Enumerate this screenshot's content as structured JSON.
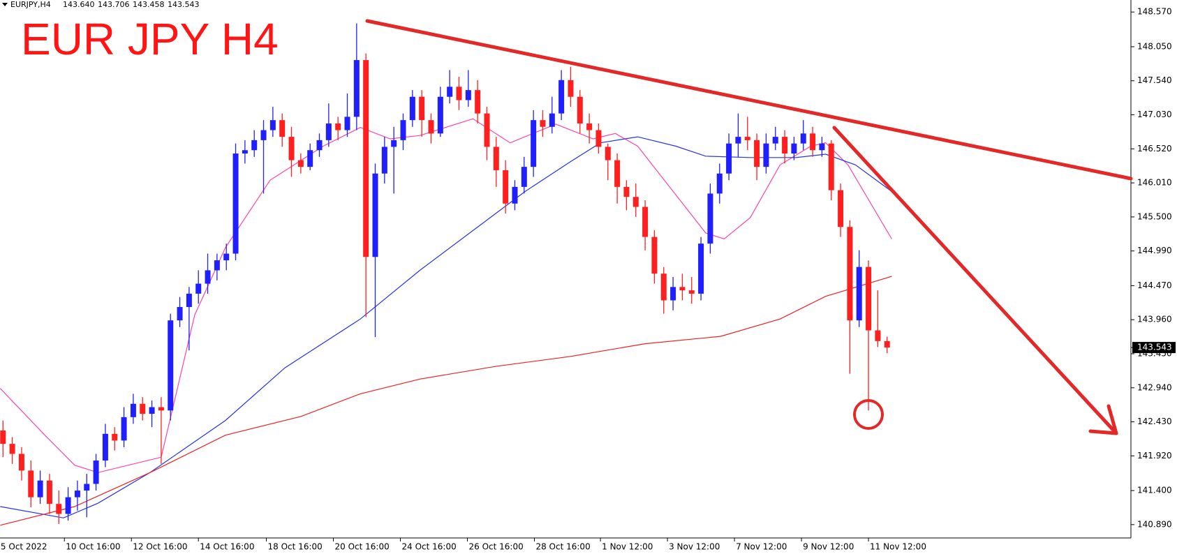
{
  "chart_data": {
    "type": "candlestick",
    "title": "EUR JPY H4",
    "info_label": "EURJPY,H4",
    "info_values": [
      {
        "value": 143.64,
        "label": "143.640"
      },
      {
        "value": 143.706,
        "label": "143.706"
      },
      {
        "value": 143.458,
        "label": "143.458"
      },
      {
        "value": 143.543,
        "label": "143.543"
      }
    ],
    "up_color": "#1f1fff",
    "down_color": "#ff1f1f",
    "ylim": [
      140.69,
      148.75
    ],
    "yticks": [
      {
        "value": 148.57,
        "label": "148.570"
      },
      {
        "value": 148.05,
        "label": "148.050"
      },
      {
        "value": 147.54,
        "label": "147.540"
      },
      {
        "value": 147.03,
        "label": "147.030"
      },
      {
        "value": 146.52,
        "label": "146.520"
      },
      {
        "value": 146.01,
        "label": "146.010"
      },
      {
        "value": 145.5,
        "label": "145.500"
      },
      {
        "value": 144.99,
        "label": "144.990"
      },
      {
        "value": 144.47,
        "label": "144.470"
      },
      {
        "value": 143.96,
        "label": "143.960"
      },
      {
        "value": 143.45,
        "label": "143.450"
      },
      {
        "value": 142.94,
        "label": "142.940"
      },
      {
        "value": 142.43,
        "label": "142.430"
      },
      {
        "value": 141.92,
        "label": "141.920"
      },
      {
        "value": 141.4,
        "label": "141.400"
      },
      {
        "value": 140.89,
        "label": "140.890"
      }
    ],
    "xlim": [
      -0.32,
      121.2
    ],
    "xticks": [
      {
        "value": -0.4,
        "label": "5 Oct 2022"
      },
      {
        "value": 6.6,
        "label": "10 Oct 16:00"
      },
      {
        "value": 13.8,
        "label": "12 Oct 16:00"
      },
      {
        "value": 21,
        "label": "14 Oct 16:00"
      },
      {
        "value": 28.3,
        "label": "18 Oct 16:00"
      },
      {
        "value": 35.5,
        "label": "20 Oct 16:00"
      },
      {
        "value": 42.7,
        "label": "24 Oct 16:00"
      },
      {
        "value": 49.9,
        "label": "26 Oct 16:00"
      },
      {
        "value": 57.1,
        "label": "28 Oct 16:00"
      },
      {
        "value": 64.2,
        "label": "1 Nov 12:00"
      },
      {
        "value": 71.4,
        "label": "3 Nov 12:00"
      },
      {
        "value": 78.6,
        "label": "7 Nov 12:00"
      },
      {
        "value": 85.8,
        "label": "9 Nov 12:00"
      },
      {
        "value": 93,
        "label": "11 Nov 12:00"
      }
    ],
    "ohlc": [
      [
        142.3,
        142.45,
        141.9,
        142.1
      ],
      [
        142.1,
        142.2,
        141.8,
        141.95
      ],
      [
        141.95,
        142.05,
        141.55,
        141.7
      ],
      [
        141.7,
        141.85,
        141.15,
        141.3
      ],
      [
        141.3,
        141.7,
        141.2,
        141.55
      ],
      [
        141.55,
        141.65,
        141.05,
        141.2
      ],
      [
        141.2,
        141.4,
        140.9,
        141.05
      ],
      [
        141.05,
        141.45,
        140.95,
        141.3
      ],
      [
        141.3,
        141.55,
        141.1,
        141.4
      ],
      [
        141.4,
        141.65,
        141.0,
        141.5
      ],
      [
        141.5,
        141.95,
        141.4,
        141.85
      ],
      [
        141.85,
        142.4,
        141.75,
        142.25
      ],
      [
        142.25,
        142.35,
        142.0,
        142.15
      ],
      [
        142.15,
        142.65,
        142.05,
        142.5
      ],
      [
        142.5,
        142.85,
        142.4,
        142.7
      ],
      [
        142.7,
        142.8,
        142.45,
        142.55
      ],
      [
        142.55,
        142.75,
        142.35,
        142.65
      ],
      [
        142.65,
        142.8,
        141.8,
        142.6
      ],
      [
        142.6,
        144.05,
        142.45,
        143.95
      ],
      [
        143.95,
        144.3,
        143.85,
        144.15
      ],
      [
        144.15,
        144.45,
        143.5,
        144.35
      ],
      [
        144.35,
        144.7,
        144.2,
        144.5
      ],
      [
        144.5,
        144.95,
        144.35,
        144.7
      ],
      [
        144.7,
        144.95,
        144.55,
        144.85
      ],
      [
        144.85,
        145.1,
        144.7,
        144.95
      ],
      [
        144.95,
        146.6,
        144.85,
        146.45
      ],
      [
        146.45,
        146.65,
        146.3,
        146.5
      ],
      [
        146.5,
        146.8,
        146.4,
        146.65
      ],
      [
        146.65,
        146.95,
        145.85,
        146.8
      ],
      [
        146.8,
        147.15,
        146.7,
        146.95
      ],
      [
        146.95,
        147.05,
        146.55,
        146.7
      ],
      [
        146.7,
        146.85,
        146.1,
        146.35
      ],
      [
        146.35,
        146.45,
        146.15,
        146.25
      ],
      [
        146.25,
        146.6,
        146.2,
        146.5
      ],
      [
        146.5,
        146.75,
        146.4,
        146.65
      ],
      [
        146.65,
        147.2,
        146.55,
        146.9
      ],
      [
        146.9,
        147.0,
        146.65,
        146.8
      ],
      [
        146.8,
        147.35,
        146.7,
        147.0
      ],
      [
        147.0,
        148.4,
        146.8,
        147.85
      ],
      [
        147.85,
        147.95,
        144.0,
        144.9
      ],
      [
        144.9,
        146.3,
        143.7,
        146.15
      ],
      [
        146.15,
        146.7,
        146.0,
        146.55
      ],
      [
        146.55,
        146.85,
        145.85,
        146.65
      ],
      [
        146.65,
        147.05,
        146.5,
        146.95
      ],
      [
        146.95,
        147.4,
        146.85,
        147.3
      ],
      [
        147.3,
        147.4,
        146.7,
        146.95
      ],
      [
        146.95,
        147.05,
        146.6,
        146.75
      ],
      [
        146.75,
        147.45,
        146.7,
        147.3
      ],
      [
        147.3,
        147.7,
        147.2,
        147.45
      ],
      [
        147.45,
        147.6,
        147.1,
        147.25
      ],
      [
        147.25,
        147.7,
        147.15,
        147.4
      ],
      [
        147.4,
        147.55,
        146.9,
        147.05
      ],
      [
        147.05,
        147.15,
        146.35,
        146.55
      ],
      [
        146.55,
        146.7,
        145.95,
        146.2
      ],
      [
        146.2,
        146.35,
        145.55,
        145.7
      ],
      [
        145.7,
        146.05,
        145.6,
        145.95
      ],
      [
        145.95,
        146.4,
        145.85,
        146.25
      ],
      [
        146.25,
        147.1,
        146.1,
        146.95
      ],
      [
        146.95,
        147.1,
        146.7,
        146.85
      ],
      [
        146.85,
        147.3,
        146.75,
        147.05
      ],
      [
        147.05,
        147.7,
        146.95,
        147.55
      ],
      [
        147.55,
        147.75,
        147.15,
        147.3
      ],
      [
        147.3,
        147.4,
        146.75,
        146.9
      ],
      [
        146.9,
        147.05,
        146.6,
        146.8
      ],
      [
        146.8,
        146.9,
        146.45,
        146.55
      ],
      [
        146.55,
        146.6,
        146.05,
        146.35
      ],
      [
        146.35,
        146.45,
        145.7,
        145.95
      ],
      [
        145.95,
        146.05,
        145.6,
        145.8
      ],
      [
        145.8,
        146.0,
        145.5,
        145.65
      ],
      [
        145.65,
        145.75,
        145.0,
        145.2
      ],
      [
        145.2,
        145.3,
        144.5,
        144.65
      ],
      [
        144.65,
        144.75,
        144.05,
        144.25
      ],
      [
        144.25,
        144.6,
        144.1,
        144.45
      ],
      [
        144.45,
        144.65,
        144.25,
        144.4
      ],
      [
        144.4,
        144.6,
        144.2,
        144.35
      ],
      [
        144.35,
        145.2,
        144.25,
        145.1
      ],
      [
        145.1,
        146.0,
        144.95,
        145.85
      ],
      [
        145.85,
        146.3,
        145.7,
        146.15
      ],
      [
        146.15,
        146.75,
        146.05,
        146.6
      ],
      [
        146.6,
        147.05,
        146.4,
        146.7
      ],
      [
        146.7,
        147.0,
        146.5,
        146.65
      ],
      [
        146.65,
        146.75,
        146.05,
        146.25
      ],
      [
        146.25,
        146.75,
        146.15,
        146.6
      ],
      [
        146.6,
        146.85,
        146.5,
        146.7
      ],
      [
        146.7,
        146.8,
        146.3,
        146.45
      ],
      [
        146.45,
        146.7,
        146.35,
        146.6
      ],
      [
        146.6,
        146.95,
        146.5,
        146.75
      ],
      [
        146.75,
        146.85,
        146.4,
        146.5
      ],
      [
        146.5,
        146.7,
        146.4,
        146.6
      ],
      [
        146.6,
        146.65,
        145.75,
        145.9
      ],
      [
        145.9,
        146.0,
        145.2,
        145.35
      ],
      [
        145.35,
        145.45,
        143.15,
        143.95
      ],
      [
        143.95,
        145.0,
        143.85,
        144.75
      ],
      [
        144.75,
        144.85,
        142.6,
        143.8
      ],
      [
        143.8,
        144.4,
        143.55,
        143.64
      ],
      [
        143.64,
        143.706,
        143.458,
        143.543
      ]
    ],
    "overlays": [
      {
        "color": "#ff44aa",
        "x": [
          -0.3,
          4.5,
          7.7,
          10.2,
          17,
          20.6,
          23.9,
          28.7,
          34.4,
          38.4,
          41.6,
          44.8,
          50.5,
          54.5,
          59.4,
          63.4,
          65.8,
          68.2,
          72.3,
          75.5,
          77.5,
          80.3,
          83.5,
          86.8,
          88.4,
          90.8,
          95.5
        ],
        "values": [
          142.93,
          142.23,
          141.78,
          141.67,
          141.9,
          144.03,
          145.04,
          146.05,
          146.56,
          146.84,
          146.67,
          146.72,
          146.97,
          146.61,
          146.89,
          146.67,
          146.75,
          146.56,
          145.83,
          145.26,
          145.17,
          145.49,
          146.28,
          146.56,
          146.61,
          146.28,
          145.17
        ]
      },
      {
        "color": "#2233ee",
        "x": [
          -0.3,
          6.5,
          10.2,
          15.8,
          23.9,
          30.3,
          38.4,
          44.8,
          51.3,
          56.1,
          61,
          64.2,
          68.2,
          72.3,
          75.5,
          80.3,
          85.2,
          88.4,
          91.6,
          95.5
        ],
        "values": [
          141.16,
          140.99,
          141.21,
          141.67,
          142.45,
          143.24,
          143.97,
          144.7,
          145.38,
          145.88,
          146.33,
          146.61,
          146.7,
          146.56,
          146.41,
          146.39,
          146.39,
          146.44,
          146.28,
          145.88
        ]
      },
      {
        "color": "#ee2222",
        "x": [
          -0.3,
          7.7,
          15.8,
          23.9,
          32,
          38.4,
          44.8,
          52.9,
          61,
          69,
          77.1,
          83.5,
          88.4,
          95.5
        ],
        "values": [
          140.88,
          141.16,
          141.67,
          142.23,
          142.51,
          142.85,
          143.07,
          143.26,
          143.41,
          143.6,
          143.71,
          143.97,
          144.31,
          144.61
        ]
      }
    ],
    "last_price": {
      "value": 143.543,
      "label": "143.543"
    }
  }
}
